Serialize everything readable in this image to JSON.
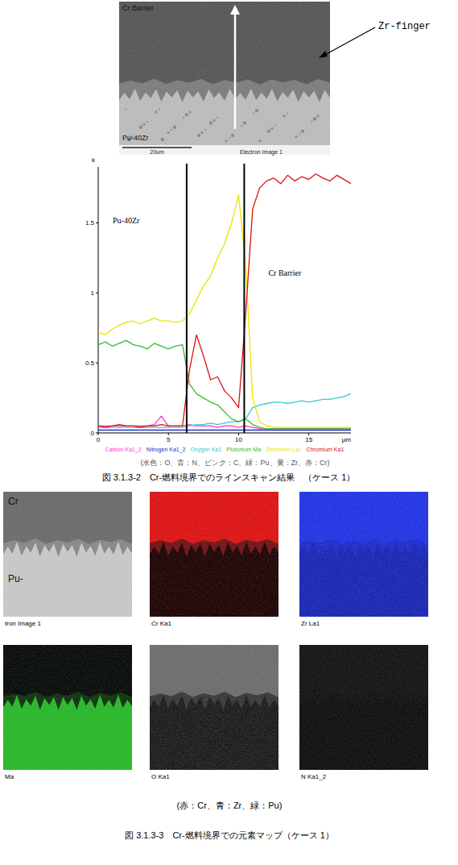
{
  "sem_image": {
    "top_label": "Cr Barrier",
    "bottom_label": "Pu-40Zr",
    "annotation": "Zr-finger",
    "scale_bar": "20um",
    "image_label": "Electron Image 1"
  },
  "chart_data": {
    "type": "line",
    "y_label": "k",
    "x_label": "μm",
    "x": [
      0,
      0.5,
      1,
      1.5,
      2,
      2.5,
      3,
      3.5,
      4,
      4.5,
      5,
      5.5,
      6,
      6.5,
      7,
      7.5,
      8,
      8.5,
      9,
      9.5,
      10,
      10.5,
      11,
      11.5,
      12,
      12.5,
      13,
      13.5,
      14,
      14.5,
      15,
      15.5,
      16,
      16.5,
      17,
      17.5,
      18
    ],
    "xlim": [
      0,
      18
    ],
    "xticks": [
      0,
      5,
      10,
      15
    ],
    "ylim": [
      0,
      1.9
    ],
    "yticks": [
      0,
      0.5,
      1,
      1.5
    ],
    "legend": "bottom",
    "grid": false,
    "region_labels": [
      "Pu-40Zr",
      "Cr Barrier"
    ],
    "region_boundaries": [
      6.3,
      10.4
    ],
    "series": [
      {
        "name": "Carbon Ka1_2",
        "color": "#ff33cc",
        "values": [
          0.05,
          0.05,
          0.05,
          0.05,
          0.05,
          0.05,
          0.05,
          0.05,
          0.06,
          0.12,
          0.05,
          0.05,
          0.05,
          0.06,
          0.05,
          0.05,
          0.05,
          0.04,
          0.05,
          0.05,
          0.04,
          0.05,
          0.04,
          0.03,
          0.03,
          0.03,
          0.03,
          0.03,
          0.03,
          0.03,
          0.03,
          0.03,
          0.03,
          0.03,
          0.03,
          0.03,
          0.03
        ]
      },
      {
        "name": "Nitrogen Ka1_2",
        "color": "#2233cc",
        "values": [
          0.02,
          0.02,
          0.02,
          0.02,
          0.02,
          0.02,
          0.02,
          0.02,
          0.02,
          0.02,
          0.02,
          0.02,
          0.02,
          0.02,
          0.02,
          0.02,
          0.02,
          0.02,
          0.02,
          0.02,
          0.02,
          0.02,
          0.02,
          0.02,
          0.02,
          0.02,
          0.02,
          0.02,
          0.02,
          0.02,
          0.02,
          0.02,
          0.02,
          0.02,
          0.02,
          0.02,
          0.02
        ]
      },
      {
        "name": "Oxygen Ka1",
        "color": "#33cccc",
        "values": [
          0.04,
          0.04,
          0.04,
          0.04,
          0.04,
          0.04,
          0.04,
          0.04,
          0.04,
          0.04,
          0.04,
          0.04,
          0.04,
          0.05,
          0.06,
          0.06,
          0.07,
          0.06,
          0.07,
          0.08,
          0.08,
          0.1,
          0.18,
          0.2,
          0.21,
          0.22,
          0.22,
          0.21,
          0.22,
          0.23,
          0.22,
          0.23,
          0.24,
          0.24,
          0.25,
          0.26,
          0.28
        ]
      },
      {
        "name": "Plutonium Ma",
        "color": "#33bb33",
        "values": [
          0.63,
          0.65,
          0.62,
          0.64,
          0.66,
          0.63,
          0.62,
          0.6,
          0.64,
          0.62,
          0.6,
          0.62,
          0.63,
          0.35,
          0.28,
          0.25,
          0.22,
          0.2,
          0.15,
          0.1,
          0.08,
          0.1,
          0.06,
          0.04,
          0.03,
          0.03,
          0.03,
          0.03,
          0.03,
          0.03,
          0.03,
          0.03,
          0.03,
          0.03,
          0.03,
          0.03,
          0.03
        ]
      },
      {
        "name": "Zirconium La1",
        "color": "#e6e600",
        "values": [
          0.72,
          0.7,
          0.74,
          0.77,
          0.79,
          0.8,
          0.78,
          0.8,
          0.82,
          0.8,
          0.8,
          0.79,
          0.8,
          0.85,
          0.95,
          1.05,
          1.12,
          1.25,
          1.35,
          1.5,
          1.7,
          1.2,
          0.25,
          0.08,
          0.05,
          0.04,
          0.04,
          0.04,
          0.04,
          0.04,
          0.04,
          0.04,
          0.04,
          0.04,
          0.04,
          0.04,
          0.04
        ]
      },
      {
        "name": "Chromium Ka1",
        "color": "#dd1111",
        "values": [
          0.05,
          0.04,
          0.05,
          0.06,
          0.05,
          0.05,
          0.04,
          0.05,
          0.05,
          0.06,
          0.05,
          0.05,
          0.05,
          0.45,
          0.7,
          0.55,
          0.38,
          0.4,
          0.3,
          0.25,
          0.18,
          0.85,
          1.6,
          1.75,
          1.8,
          1.82,
          1.78,
          1.84,
          1.8,
          1.83,
          1.81,
          1.85,
          1.82,
          1.8,
          1.84,
          1.81,
          1.78
        ]
      }
    ]
  },
  "chart_caption": {
    "color_key": "(水色：O、青：N、ピンク：C、緑：Pu、黄：Zr、赤：Cr)",
    "figure": "図 3.1.3-2　Cr-燃料境界でのラインスキャン結果　（ケース 1）"
  },
  "element_maps": {
    "panels": [
      {
        "label": "tron Image 1",
        "top_label": "Cr",
        "bottom_label": "Pu-"
      },
      {
        "label": "Cr Ka1"
      },
      {
        "label": "Zr La1"
      },
      {
        "label": "Ma"
      },
      {
        "label": "O Ka1"
      },
      {
        "label": "N Ka1_2"
      }
    ],
    "color_key": "(赤：Cr、青：Zr、緑：Pu)",
    "figure": "図 3.1.3-3　Cr-燃料境界での元素マップ（ケース 1）"
  }
}
